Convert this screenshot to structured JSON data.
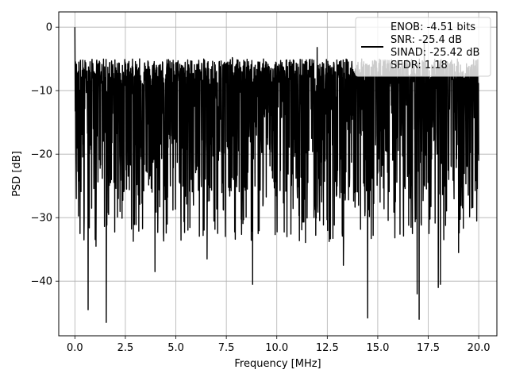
{
  "chart_data": {
    "type": "line",
    "title": "",
    "xlabel": "Frequency [MHz]",
    "ylabel": "PSD [dB]",
    "xlim": [
      -0.8,
      20.9
    ],
    "ylim": [
      -48.6,
      2.4
    ],
    "xticks": [
      0.0,
      2.5,
      5.0,
      7.5,
      10.0,
      12.5,
      15.0,
      17.5,
      20.0
    ],
    "xtick_labels": [
      "0.0",
      "2.5",
      "5.0",
      "7.5",
      "10.0",
      "12.5",
      "15.0",
      "17.5",
      "20.0"
    ],
    "yticks": [
      0,
      -10,
      -20,
      -30,
      -40
    ],
    "ytick_labels": [
      "0",
      "−10",
      "−20",
      "−30",
      "−40"
    ],
    "grid": true,
    "legend": {
      "placement": "upper right",
      "entries": [
        "ENOB: -4.51 bits",
        "SNR: -25.4 dB",
        "SINAD: -25.42 dB",
        "SFDR: 1.18"
      ]
    },
    "series": [
      {
        "color": "#000000",
        "x_range": [
          0.0,
          20.0
        ],
        "points": 2048,
        "upper_envelope_db": -7,
        "lower_envelope_db": -26,
        "notable_points": [
          {
            "x": 0.0,
            "y": 0.0
          },
          {
            "x": 0.07,
            "y": -27.0
          },
          {
            "x": 0.25,
            "y": -32.5
          },
          {
            "x": 0.45,
            "y": -33.5
          },
          {
            "x": 0.65,
            "y": -44.5
          },
          {
            "x": 1.05,
            "y": -34.5
          },
          {
            "x": 1.55,
            "y": -46.5
          },
          {
            "x": 3.97,
            "y": -38.5
          },
          {
            "x": 6.55,
            "y": -36.5
          },
          {
            "x": 8.8,
            "y": -40.5
          },
          {
            "x": 10.5,
            "y": -33.0
          },
          {
            "x": 13.3,
            "y": -37.5
          },
          {
            "x": 14.5,
            "y": -45.8
          },
          {
            "x": 16.95,
            "y": -42.0
          },
          {
            "x": 17.05,
            "y": -46.0
          },
          {
            "x": 18.0,
            "y": -41.0
          },
          {
            "x": 18.1,
            "y": -40.5
          },
          {
            "x": 19.0,
            "y": -35.5
          },
          {
            "x": 3.2,
            "y": -5.0
          },
          {
            "x": 7.8,
            "y": -4.8
          },
          {
            "x": 12.0,
            "y": -3.2
          },
          {
            "x": 17.3,
            "y": -2.5
          }
        ]
      }
    ]
  }
}
